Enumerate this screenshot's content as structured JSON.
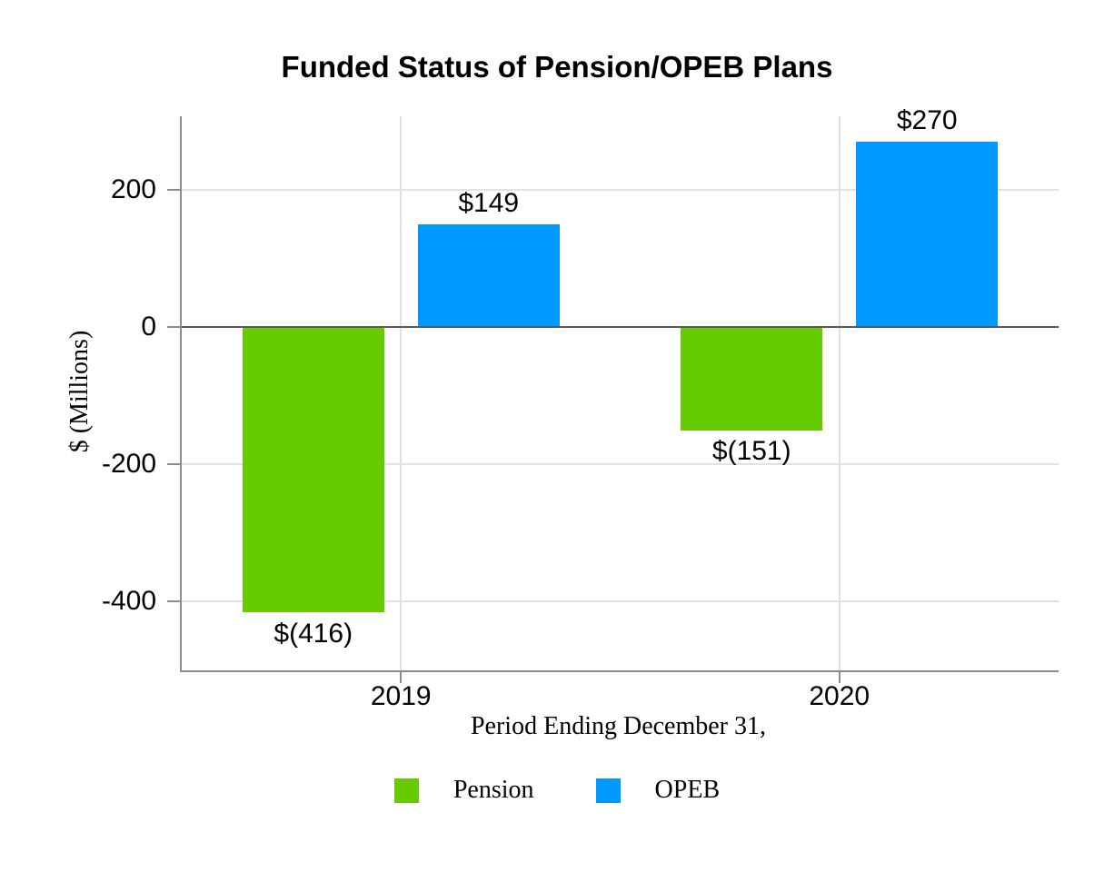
{
  "chart_data": {
    "type": "bar",
    "title": "Funded Status of Pension/OPEB Plans",
    "xlabel": "Period Ending December 31,",
    "ylabel": "$ (Millions)",
    "categories": [
      "2019",
      "2020"
    ],
    "series": [
      {
        "name": "Pension",
        "color": "#66CC00",
        "values": [
          -416,
          -151
        ],
        "labels": [
          "$(416)",
          "$(151)"
        ]
      },
      {
        "name": "OPEB",
        "color": "#0099FF",
        "values": [
          149,
          270
        ],
        "labels": [
          "$149",
          "$270"
        ]
      }
    ],
    "yticks": [
      200,
      0,
      -200,
      -400
    ],
    "ylim": [
      -500,
      307
    ],
    "grid": "horizontal-gridlines-and-category-verticals",
    "legend_position": "bottom",
    "colors": {
      "background": "#FFFFFF",
      "axis_line": "#8C8C8C",
      "zero_line": "#595959",
      "gridline": "#E2E2E2",
      "text": "#000000"
    }
  }
}
